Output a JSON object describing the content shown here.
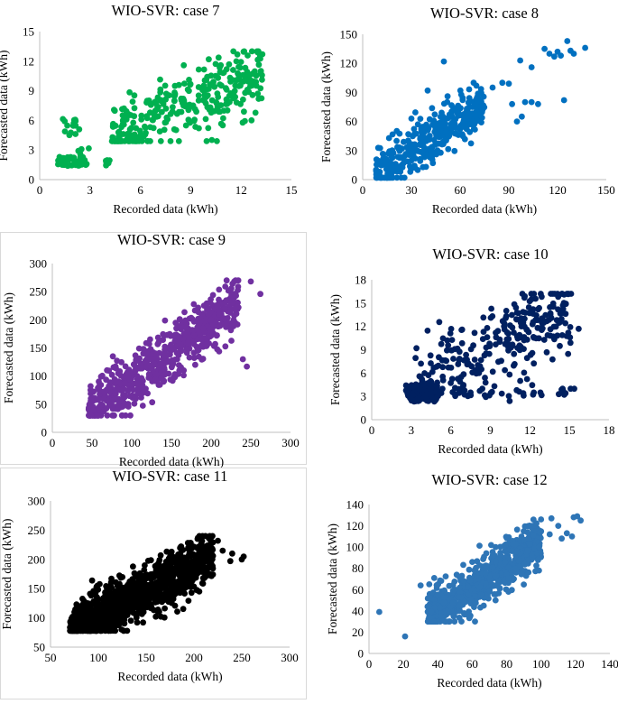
{
  "figure": {
    "type": "grid_of_scatter_plots",
    "layout": "3 rows x 2 columns"
  },
  "chart_data": [
    {
      "id": "case7",
      "type": "scatter",
      "title": "WIO-SVR: case 7",
      "xlabel": "Recorded data (kWh)",
      "ylabel": "Forecasted data (kWh)",
      "color": "#00b050",
      "xlim": [
        0,
        15
      ],
      "ylim": [
        0,
        15
      ],
      "xticks": [
        0,
        3,
        6,
        9,
        12,
        15
      ],
      "yticks": [
        0,
        3,
        6,
        9,
        12,
        15
      ],
      "clusters": [
        {
          "x": [
            1.0,
            2.8
          ],
          "y": [
            1.4,
            2.3
          ],
          "n": 40
        },
        {
          "x": [
            1.3,
            2.4
          ],
          "y": [
            4.5,
            6.2
          ],
          "n": 14
        },
        {
          "x": [
            2.2,
            3.0
          ],
          "y": [
            2.5,
            3.5
          ],
          "n": 4
        },
        {
          "x": [
            3.8,
            4.7
          ],
          "y": [
            1.4,
            2.0
          ],
          "n": 8
        }
      ],
      "trend": {
        "x0": 4.3,
        "x1": 13.3,
        "y0": 4.2,
        "y1": 10.8,
        "spread": 1.9,
        "ymax": 13.0,
        "ymin": 3.9,
        "n": 320
      }
    },
    {
      "id": "case8",
      "type": "scatter",
      "title": "WIO-SVR: case 8",
      "xlabel": "Recorded data (kWh)",
      "ylabel": "Forecasted data (kWh)",
      "color": "#0070c0",
      "xlim": [
        0,
        150
      ],
      "ylim": [
        0,
        150
      ],
      "xticks": [
        0,
        30,
        60,
        90,
        120,
        150
      ],
      "yticks": [
        0,
        30,
        60,
        90,
        120,
        150
      ],
      "trend": {
        "x0": 8,
        "x1": 75,
        "y0": 6,
        "y1": 80,
        "spread": 13,
        "ymax": 100,
        "ymin": 2,
        "n": 380
      },
      "points": [
        [
          80,
          95
        ],
        [
          86,
          100
        ],
        [
          90,
          99
        ],
        [
          92,
          78
        ],
        [
          95,
          60
        ],
        [
          98,
          65
        ],
        [
          100,
          80
        ],
        [
          104,
          80
        ],
        [
          108,
          78
        ],
        [
          112,
          135
        ],
        [
          115,
          130
        ],
        [
          118,
          127
        ],
        [
          120,
          132
        ],
        [
          122,
          128
        ],
        [
          124,
          82
        ],
        [
          126,
          143
        ],
        [
          128,
          133
        ],
        [
          130,
          130
        ],
        [
          137,
          136
        ],
        [
          97,
          123
        ],
        [
          50,
          122
        ],
        [
          40,
          92
        ],
        [
          30,
          63
        ],
        [
          34,
          57
        ],
        [
          45,
          48
        ],
        [
          70,
          97
        ],
        [
          104,
          116
        ]
      ]
    },
    {
      "id": "case9",
      "type": "scatter",
      "title": "WIO-SVR: case 9",
      "xlabel": "Recorded data (kWh)",
      "ylabel": "Forecasted data (kWh)",
      "color": "#7030a0",
      "xlim": [
        0,
        300
      ],
      "ylim": [
        0,
        300
      ],
      "xticks": [
        0,
        50,
        100,
        150,
        200,
        250,
        300
      ],
      "yticks": [
        0,
        50,
        100,
        150,
        200,
        250,
        300
      ],
      "trend": {
        "x0": 45,
        "x1": 235,
        "y0": 35,
        "y1": 230,
        "spread": 26,
        "ymax": 270,
        "ymin": 30,
        "n": 650
      },
      "points": [
        [
          250,
          268
        ],
        [
          262,
          246
        ],
        [
          240,
          130
        ],
        [
          245,
          117
        ],
        [
          230,
          220
        ],
        [
          225,
          240
        ],
        [
          200,
          200
        ],
        [
          190,
          185
        ],
        [
          210,
          210
        ],
        [
          180,
          120
        ],
        [
          160,
          110
        ]
      ]
    },
    {
      "id": "case10",
      "type": "scatter",
      "title": "WIO-SVR: case 10",
      "xlabel": "Recorded data (kWh)",
      "ylabel": "Forecasted data (kWh)",
      "color": "#002060",
      "xlim": [
        0,
        18
      ],
      "ylim": [
        0,
        18
      ],
      "xticks": [
        0,
        3,
        6,
        9,
        12,
        15,
        18
      ],
      "yticks": [
        0,
        3,
        6,
        9,
        12,
        15,
        18
      ],
      "clusters": [
        {
          "x": [
            2.6,
            5.0
          ],
          "y": [
            2.3,
            4.6
          ],
          "n": 110
        },
        {
          "x": [
            3.5,
            15.5
          ],
          "y": [
            3.0,
            4.0
          ],
          "n": 30
        }
      ],
      "trend": {
        "x0": 3.3,
        "x1": 15.2,
        "y0": 5.0,
        "y1": 14.5,
        "spread": 2.8,
        "ymax": 16.2,
        "ymin": 2.4,
        "n": 280
      },
      "points": [
        [
          11.0,
          3.8
        ],
        [
          11.2,
          3.6
        ],
        [
          11.5,
          3.4
        ],
        [
          12.3,
          3.5
        ],
        [
          12.8,
          3.5
        ],
        [
          14.7,
          3.4
        ],
        [
          15.7,
          11.7
        ],
        [
          14.6,
          16.1
        ],
        [
          8.2,
          3.7
        ],
        [
          7.5,
          3.5
        ],
        [
          7.0,
          3.6
        ],
        [
          6.2,
          3.5
        ]
      ]
    },
    {
      "id": "case11",
      "type": "scatter",
      "title": "WIO-SVR: case 11",
      "xlabel": "Recorded data (kWh)",
      "ylabel": "Forecasted data (kWh)",
      "color": "#000000",
      "xlim": [
        50,
        300
      ],
      "ylim": [
        50,
        300
      ],
      "xticks": [
        50,
        100,
        150,
        200,
        250,
        300
      ],
      "yticks": [
        50,
        100,
        150,
        200,
        250,
        300
      ],
      "trend": {
        "x0": 70,
        "x1": 220,
        "y0": 80,
        "y1": 205,
        "spread": 22,
        "ymax": 240,
        "ymin": 78,
        "n": 1100
      },
      "points": [
        [
          250,
          200
        ],
        [
          252,
          205
        ],
        [
          238,
          197
        ],
        [
          240,
          210
        ],
        [
          230,
          215
        ],
        [
          225,
          232
        ],
        [
          218,
          238
        ],
        [
          212,
          240
        ],
        [
          75,
          110
        ],
        [
          80,
          115
        ],
        [
          85,
          110
        ]
      ]
    },
    {
      "id": "case12",
      "type": "scatter",
      "title": "WIO-SVR: case 12",
      "xlabel": "Recorded data (kWh)",
      "ylabel": "Forecasted data (kWh)",
      "color": "#2e75b6",
      "xlim": [
        0,
        140
      ],
      "ylim": [
        0,
        140
      ],
      "xticks": [
        0,
        20,
        40,
        60,
        80,
        100,
        120,
        140
      ],
      "yticks": [
        0,
        20,
        40,
        60,
        80,
        100,
        120,
        140
      ],
      "trend": {
        "x0": 34,
        "x1": 100,
        "y0": 33,
        "y1": 105,
        "spread": 11,
        "ymax": 130,
        "ymin": 30,
        "n": 750
      },
      "points": [
        [
          6,
          39
        ],
        [
          21,
          16
        ],
        [
          30,
          64
        ],
        [
          35,
          65
        ],
        [
          106,
          127
        ],
        [
          110,
          120
        ],
        [
          115,
          113
        ],
        [
          119,
          128
        ],
        [
          121,
          129
        ],
        [
          123,
          125
        ],
        [
          118,
          110
        ],
        [
          112,
          108
        ],
        [
          100,
          126
        ],
        [
          95,
          120
        ],
        [
          105,
          112
        ]
      ]
    }
  ]
}
